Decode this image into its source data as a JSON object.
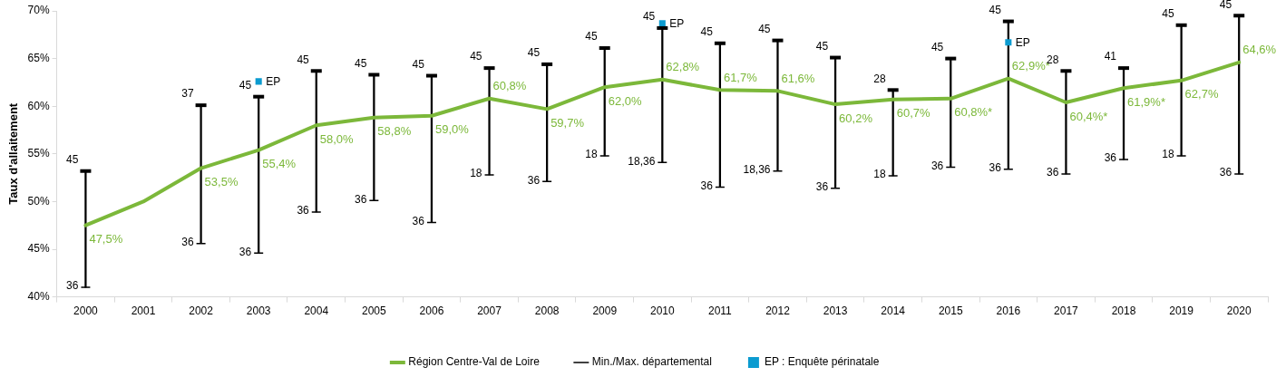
{
  "chart_data": {
    "type": "line",
    "ylabel": "Taux d'allaitement",
    "categories": [
      "2000",
      "2001",
      "2002",
      "2003",
      "2004",
      "2005",
      "2006",
      "2007",
      "2008",
      "2009",
      "2010",
      "2011",
      "2012",
      "2013",
      "2014",
      "2015",
      "2016",
      "2017",
      "2018",
      "2019",
      "2020"
    ],
    "ylim": [
      40,
      70
    ],
    "yticks": [
      {
        "value": 40,
        "label": "40%"
      },
      {
        "value": 45,
        "label": "45%"
      },
      {
        "value": 50,
        "label": "50%"
      },
      {
        "value": 55,
        "label": "55%"
      },
      {
        "value": 60,
        "label": "60%"
      },
      {
        "value": 65,
        "label": "65%"
      },
      {
        "value": 70,
        "label": "70%"
      }
    ],
    "grid": false,
    "legend": "bottom",
    "series": [
      {
        "name": "Région Centre-Val de Loire",
        "color": "#7cb83a",
        "marker": "none",
        "line_style": "solid",
        "values": [
          47.5,
          50.0,
          53.5,
          55.4,
          58.0,
          58.8,
          59.0,
          60.8,
          59.7,
          62.0,
          62.8,
          61.7,
          61.6,
          60.2,
          60.7,
          60.8,
          62.9,
          60.4,
          61.9,
          62.7,
          64.6
        ],
        "value_labels": [
          "47,5%",
          null,
          "53,5%",
          "55,4%",
          "58,0%",
          "58,8%",
          "59,0%",
          "60,8%",
          "59,7%",
          "62,0%",
          "62,8%",
          "61,7%",
          "61,6%",
          "60,2%",
          "60,7%",
          "60,8%*",
          "62,9%*",
          "60,4%*",
          "61,9%*",
          "62,7%",
          "64,6%"
        ]
      },
      {
        "name": "Min./Max. départemental",
        "type": "bar",
        "color": "#000000",
        "base": [
          41.0,
          null,
          45.6,
          44.6,
          48.9,
          50.1,
          47.8,
          52.8,
          52.1,
          54.8,
          54.1,
          51.5,
          53.2,
          51.4,
          52.7,
          53.6,
          53.4,
          52.9,
          54.4,
          54.8,
          52.9
        ],
        "values": [
          12.2,
          null,
          14.5,
          16.4,
          14.8,
          13.2,
          15.4,
          11.2,
          12.3,
          11.3,
          14.1,
          15.1,
          13.7,
          13.7,
          9.0,
          11.4,
          15.5,
          10.8,
          9.6,
          13.7,
          16.6
        ]
      },
      {
        "name": "EP : Enquête périnatale",
        "type": "scatter",
        "color": "#0b9bd0",
        "marker": "square",
        "values": [
          null,
          null,
          null,
          62.6,
          null,
          null,
          null,
          null,
          null,
          null,
          68.7,
          null,
          null,
          null,
          null,
          null,
          66.7,
          null,
          null,
          null,
          null
        ],
        "value_labels": [
          null,
          null,
          null,
          "EP",
          null,
          null,
          null,
          null,
          null,
          null,
          "EP",
          null,
          null,
          null,
          null,
          null,
          "EP",
          null,
          null,
          null,
          null
        ]
      }
    ],
    "annotations": [
      {
        "text": "45",
        "x": "2000",
        "y": 53.2
      },
      {
        "text": "36",
        "x": "2000",
        "y": 41.0
      },
      {
        "text": "37",
        "x": "2002",
        "y": 60.1
      },
      {
        "text": "36",
        "x": "2002",
        "y": 45.6
      },
      {
        "text": "45",
        "x": "2003",
        "y": 61.0
      },
      {
        "text": "36",
        "x": "2003",
        "y": 44.6
      },
      {
        "text": "45",
        "x": "2004",
        "y": 63.7
      },
      {
        "text": "36",
        "x": "2004",
        "y": 48.9
      },
      {
        "text": "45",
        "x": "2005",
        "y": 63.3
      },
      {
        "text": "36",
        "x": "2005",
        "y": 50.1
      },
      {
        "text": "45",
        "x": "2006",
        "y": 63.2
      },
      {
        "text": "36",
        "x": "2006",
        "y": 47.8
      },
      {
        "text": "45",
        "x": "2007",
        "y": 64.0
      },
      {
        "text": "18",
        "x": "2007",
        "y": 52.8
      },
      {
        "text": "45",
        "x": "2008",
        "y": 64.4
      },
      {
        "text": "36",
        "x": "2008",
        "y": 52.1
      },
      {
        "text": "45",
        "x": "2009",
        "y": 66.1
      },
      {
        "text": "18",
        "x": "2009",
        "y": 54.8
      },
      {
        "text": "45",
        "x": "2010",
        "y": 68.2
      },
      {
        "text": "18,36",
        "x": "2010",
        "y": 54.1
      },
      {
        "text": "45",
        "x": "2011",
        "y": 66.6
      },
      {
        "text": "36",
        "x": "2011",
        "y": 51.5
      },
      {
        "text": "45",
        "x": "2012",
        "y": 66.9
      },
      {
        "text": "18,36",
        "x": "2012",
        "y": 53.2
      },
      {
        "text": "45",
        "x": "2013",
        "y": 65.1
      },
      {
        "text": "36",
        "x": "2013",
        "y": 51.4
      },
      {
        "text": "28",
        "x": "2014",
        "y": 61.7
      },
      {
        "text": "18",
        "x": "2014",
        "y": 52.7
      },
      {
        "text": "45",
        "x": "2015",
        "y": 65.0
      },
      {
        "text": "36",
        "x": "2015",
        "y": 53.6
      },
      {
        "text": "45",
        "x": "2016",
        "y": 68.9
      },
      {
        "text": "36",
        "x": "2016",
        "y": 53.4
      },
      {
        "text": "28",
        "x": "2017",
        "y": 63.7
      },
      {
        "text": "36",
        "x": "2017",
        "y": 52.9
      },
      {
        "text": "41",
        "x": "2018",
        "y": 64.0
      },
      {
        "text": "36",
        "x": "2018",
        "y": 54.4
      },
      {
        "text": "45",
        "x": "2019",
        "y": 68.5
      },
      {
        "text": "18",
        "x": "2019",
        "y": 54.8
      },
      {
        "text": "45",
        "x": "2020",
        "y": 69.5
      },
      {
        "text": "36",
        "x": "2020",
        "y": 52.9
      }
    ]
  }
}
